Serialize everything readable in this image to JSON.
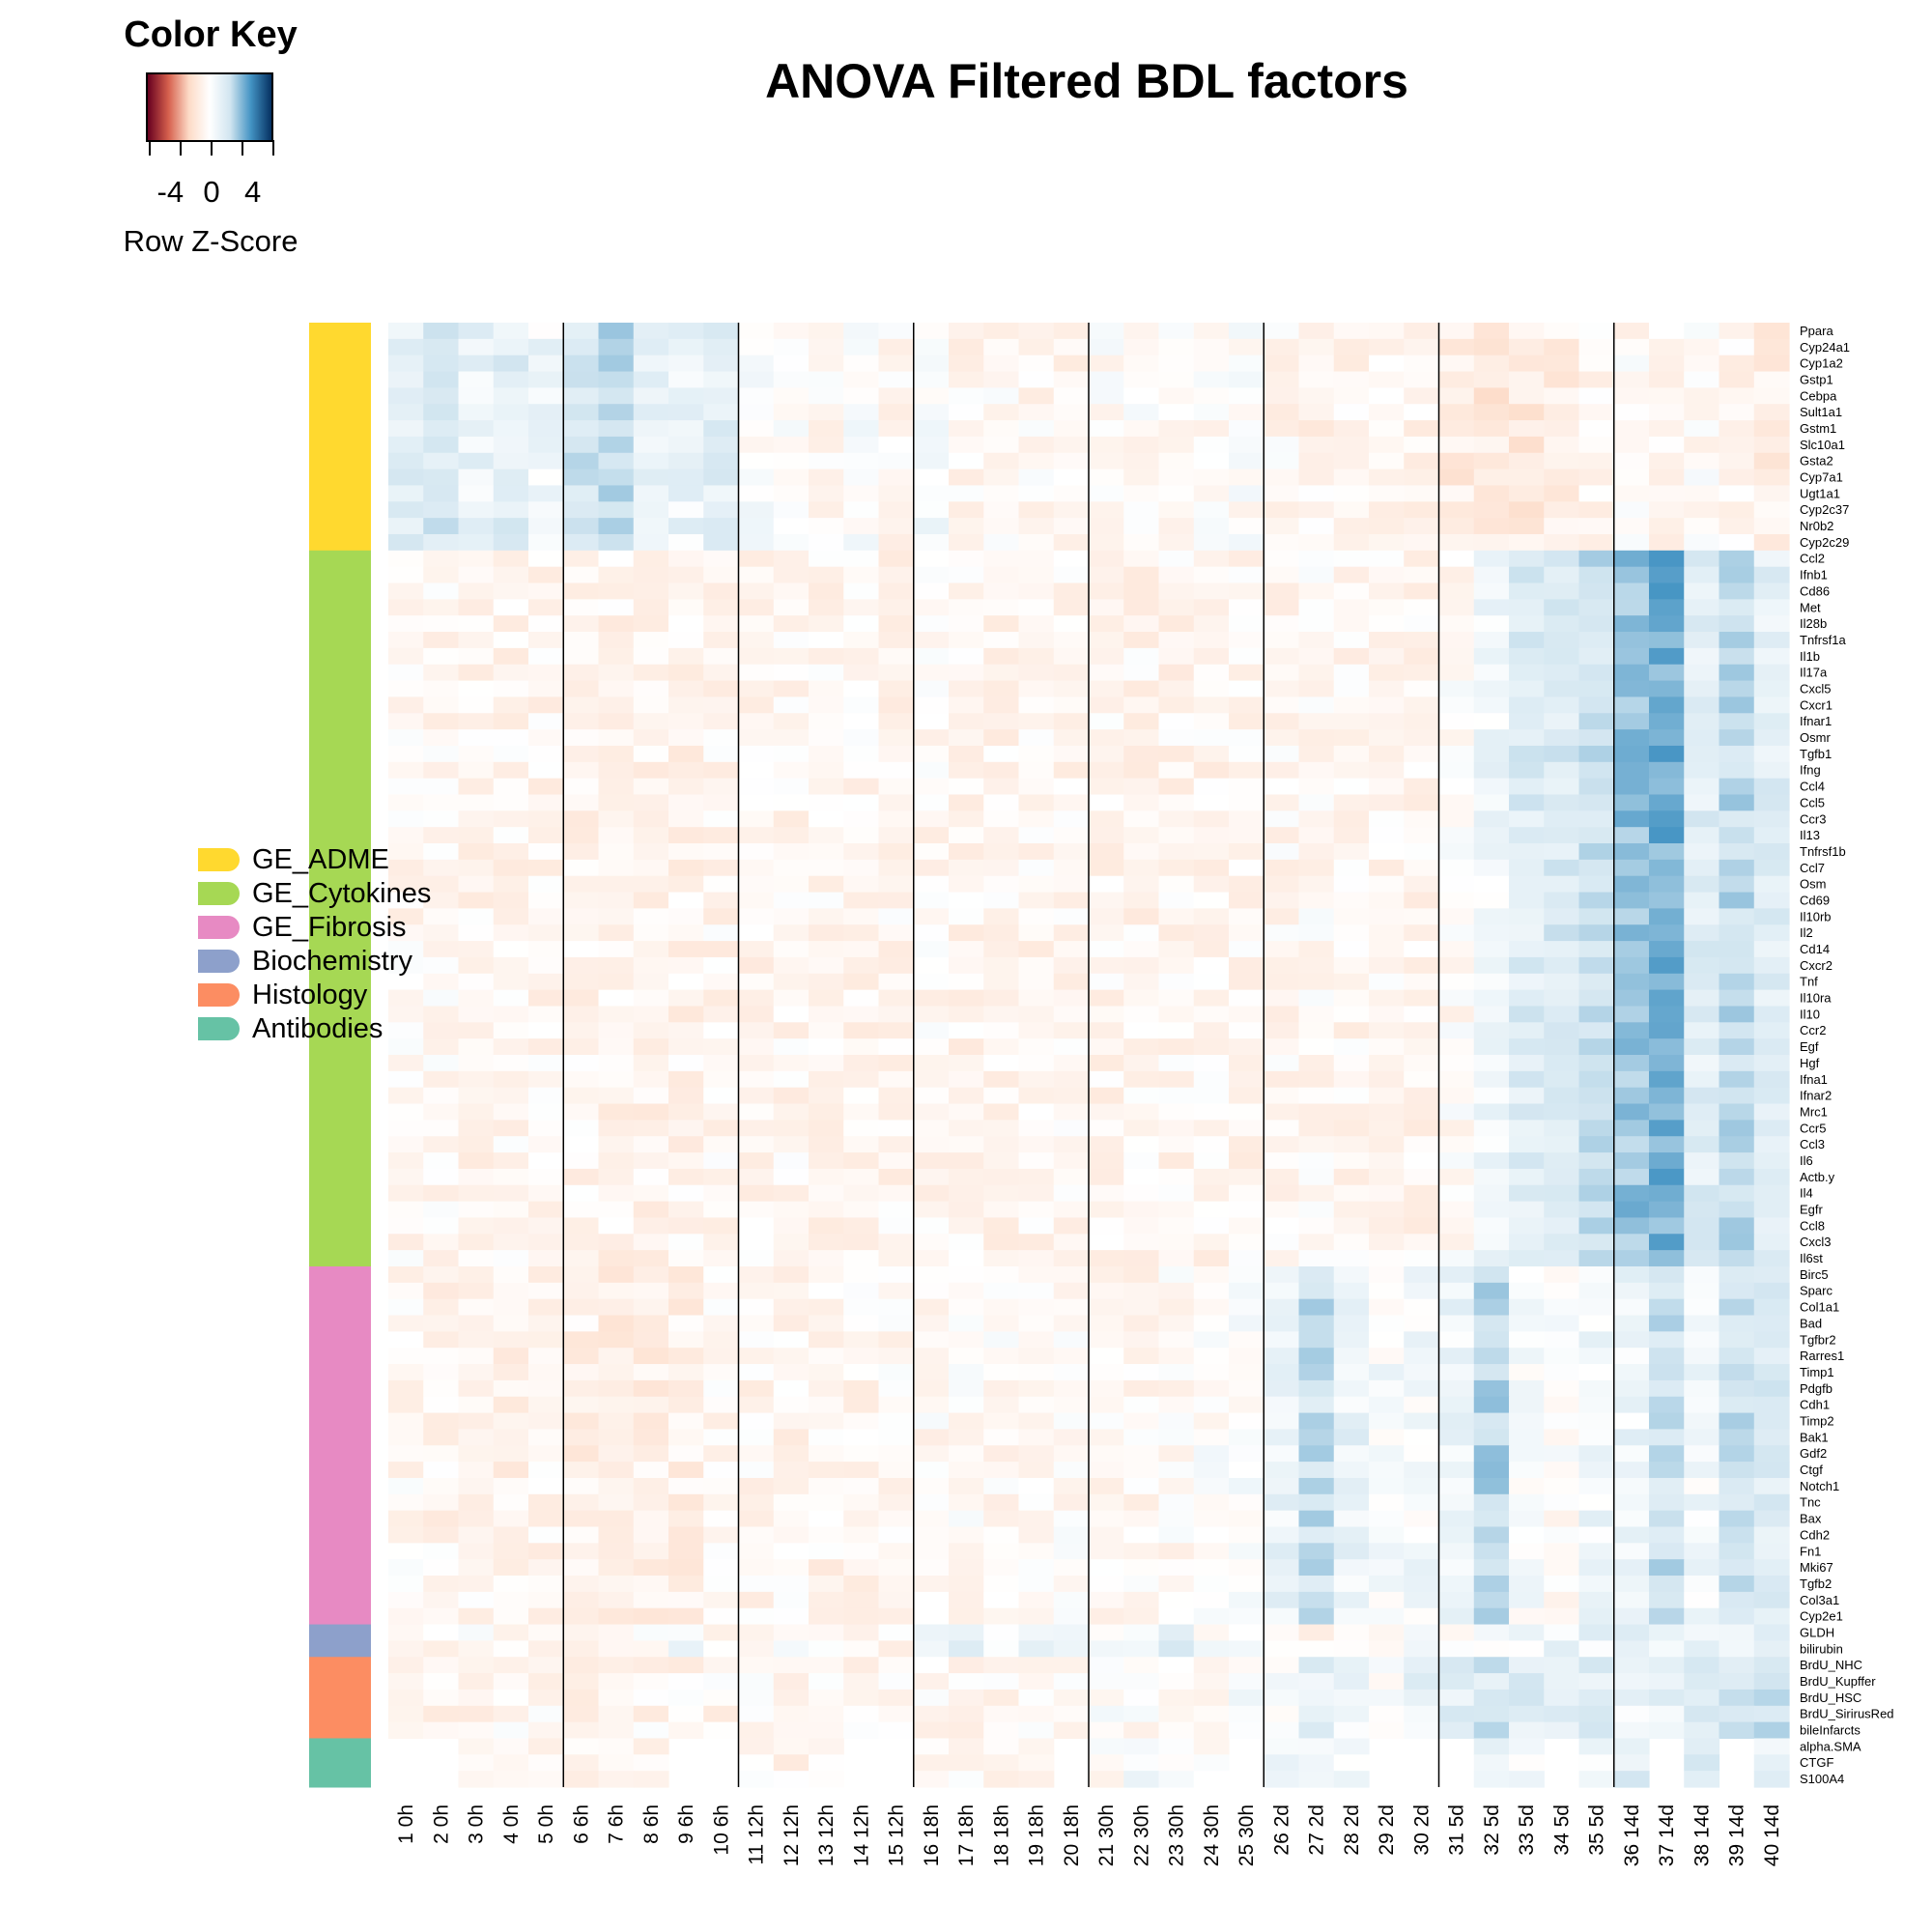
{
  "title": "ANOVA Filtered BDL factors",
  "color_key": {
    "title": "Color Key",
    "label": "Row Z-Score",
    "tick_labels": [
      "-4",
      "0",
      "4"
    ],
    "tick_values": [
      -4,
      0,
      4
    ],
    "range": [
      -6,
      6
    ],
    "colors": [
      "#67001f",
      "#d6604d",
      "#fddbc7",
      "#ffffff",
      "#d1e5f0",
      "#4393c3",
      "#053061"
    ]
  },
  "legend": [
    {
      "label": "GE_ADME",
      "color": "#ffd92f"
    },
    {
      "label": "GE_Cytokines",
      "color": "#a6d854"
    },
    {
      "label": "GE_Fibrosis",
      "color": "#e78ac3"
    },
    {
      "label": "Biochemistry",
      "color": "#8da0cb"
    },
    {
      "label": "Histology",
      "color": "#fc8d62"
    },
    {
      "label": "Antibodies",
      "color": "#66c2a5"
    }
  ],
  "chart_data": {
    "type": "heatmap",
    "title": "ANOVA Filtered BDL factors",
    "value_scale": "Row Z-Score",
    "columns": [
      "1 0h",
      "2 0h",
      "3 0h",
      "4 0h",
      "5 0h",
      "6 6h",
      "7 6h",
      "8 6h",
      "9 6h",
      "10 6h",
      "11 12h",
      "12 12h",
      "13 12h",
      "14 12h",
      "15 12h",
      "16 18h",
      "17 18h",
      "18 18h",
      "19 18h",
      "20 18h",
      "21 30h",
      "22 30h",
      "23 30h",
      "24 30h",
      "25 30h",
      "26 2d",
      "27 2d",
      "28 2d",
      "29 2d",
      "30 2d",
      "31 5d",
      "32 5d",
      "33 5d",
      "34 5d",
      "35 5d",
      "36 14d",
      "37 14d",
      "38 14d",
      "39 14d",
      "40 14d"
    ],
    "column_groups": [
      "0h",
      "6h",
      "12h",
      "18h",
      "30h",
      "2d",
      "5d",
      "14d"
    ],
    "rows": [
      "Ppara",
      "Cyp24a1",
      "Cyp1a2",
      "Gstp1",
      "Cebpa",
      "Sult1a1",
      "Gstm1",
      "Slc10a1",
      "Gsta2",
      "Cyp7a1",
      "Ugt1a1",
      "Cyp2c37",
      "Nr0b2",
      "Cyp2c29",
      "Ccl2",
      "Ifnb1",
      "Cd86",
      "Met",
      "Il28b",
      "Tnfrsf1a",
      "Il1b",
      "Il17a",
      "Cxcl5",
      "Cxcr1",
      "Ifnar1",
      "Osmr",
      "Tgfb1",
      "Ifng",
      "Ccl4",
      "Ccl5",
      "Ccr3",
      "Il13",
      "Tnfrsf1b",
      "Ccl7",
      "Osm",
      "Cd69",
      "Il10rb",
      "Il2",
      "Cd14",
      "Cxcr2",
      "Tnf",
      "Il10ra",
      "Il10",
      "Ccr2",
      "Egf",
      "Hgf",
      "Ifna1",
      "Ifnar2",
      "Mrc1",
      "Ccr5",
      "Ccl3",
      "Il6",
      "Actb.y",
      "Il4",
      "Egfr",
      "Ccl8",
      "Cxcl3",
      "Il6st",
      "Birc5",
      "Sparc",
      "Col1a1",
      "Bad",
      "Tgfbr2",
      "Rarres1",
      "Timp1",
      "Pdgfb",
      "Cdh1",
      "Timp2",
      "Bak1",
      "Gdf2",
      "Ctgf",
      "Notch1",
      "Tnc",
      "Bax",
      "Cdh2",
      "Fn1",
      "Mki67",
      "Tgfb2",
      "Col3a1",
      "Cyp2e1",
      "GLDH",
      "bilirubin",
      "BrdU_NHC",
      "BrdU_Kupffer",
      "BrdU_HSC",
      "BrdU_SirirusRed",
      "bileInfarcts",
      "alpha.SMA",
      "CTGF",
      "S100A4"
    ],
    "row_groups": [
      {
        "name": "GE_ADME",
        "start": 0,
        "count": 14
      },
      {
        "name": "GE_Cytokines",
        "start": 14,
        "count": 44
      },
      {
        "name": "GE_Fibrosis",
        "start": 58,
        "count": 22
      },
      {
        "name": "Biochemistry",
        "start": 80,
        "count": 2
      },
      {
        "name": "Histology",
        "start": 82,
        "count": 5
      },
      {
        "name": "Antibodies",
        "start": 87,
        "count": 3
      }
    ],
    "group_means": {
      "GE_ADME": [
        1.2,
        1.6,
        0.9,
        1.3,
        0.6,
        1.8,
        2.4,
        1.1,
        0.8,
        1.3,
        0.1,
        0.0,
        -0.3,
        0.1,
        -0.4,
        0.3,
        -0.5,
        -0.3,
        -0.4,
        -0.5,
        -0.1,
        -0.2,
        -0.3,
        -0.2,
        0.0,
        -0.4,
        -0.6,
        -0.5,
        -0.4,
        -0.5,
        -1.0,
        -1.2,
        -1.1,
        -0.8,
        -0.5,
        -0.3,
        -0.6,
        -0.2,
        -0.5,
        -0.9
      ],
      "GE_Cytokines": [
        -0.4,
        -0.4,
        -0.5,
        -0.5,
        -0.5,
        -0.6,
        -0.6,
        -0.6,
        -0.6,
        -0.5,
        -0.5,
        -0.5,
        -0.5,
        -0.5,
        -0.5,
        -0.4,
        -0.5,
        -0.5,
        -0.5,
        -0.5,
        -0.5,
        -0.5,
        -0.5,
        -0.5,
        -0.5,
        -0.4,
        -0.3,
        -0.5,
        -0.5,
        -0.5,
        -0.2,
        0.6,
        1.4,
        1.6,
        2.0,
        2.8,
        3.3,
        1.3,
        2.2,
        1.2
      ],
      "GE_Fibrosis": [
        -0.4,
        -0.5,
        -0.6,
        -0.7,
        -0.6,
        -0.7,
        -0.8,
        -0.8,
        -0.7,
        -0.5,
        -0.5,
        -0.5,
        -0.6,
        -0.5,
        -0.4,
        -0.3,
        -0.2,
        -0.3,
        -0.2,
        -0.3,
        -0.3,
        -0.4,
        -0.3,
        -0.1,
        0.1,
        0.8,
        2.0,
        0.9,
        0.3,
        0.4,
        0.7,
        2.4,
        0.3,
        -0.1,
        0.6,
        0.7,
        2.0,
        0.5,
        1.9,
        1.4
      ],
      "Biochemistry": [
        -0.3,
        -0.3,
        -0.3,
        -0.4,
        -0.3,
        -0.4,
        -0.4,
        -0.3,
        0.3,
        -0.3,
        -0.2,
        -0.2,
        -0.3,
        -0.3,
        -0.3,
        0.2,
        1.0,
        0.2,
        1.2,
        0.3,
        0.1,
        0.1,
        1.6,
        0.2,
        0.2,
        -0.4,
        -0.6,
        -0.3,
        -0.5,
        0.1,
        -0.2,
        0.2,
        0.3,
        0.7,
        0.8,
        1.2,
        0.3,
        0.9,
        0.5,
        0.8
      ],
      "Histology": [
        -0.5,
        -0.5,
        -0.5,
        -0.4,
        -0.4,
        -0.5,
        -0.5,
        -0.5,
        -0.5,
        -0.5,
        -0.4,
        -0.4,
        -0.4,
        -0.4,
        -0.4,
        -0.4,
        -0.4,
        -0.4,
        -0.4,
        -0.4,
        0.1,
        -0.2,
        -0.3,
        -0.2,
        0.2,
        0.4,
        1.1,
        0.8,
        0.2,
        0.9,
        1.2,
        1.7,
        1.4,
        1.0,
        1.3,
        0.8,
        1.1,
        1.3,
        1.6,
        1.9
      ],
      "Antibodies": [
        null,
        null,
        -0.6,
        -0.6,
        -0.6,
        -0.7,
        -0.7,
        -0.7,
        null,
        null,
        -0.5,
        -0.5,
        -0.5,
        null,
        null,
        -0.3,
        -0.3,
        -0.3,
        -0.3,
        null,
        -0.1,
        0.3,
        -0.1,
        -0.2,
        null,
        0.5,
        0.7,
        0.4,
        null,
        null,
        null,
        1.0,
        0.5,
        null,
        0.5,
        1.3,
        null,
        1.2,
        null,
        0.7
      ]
    },
    "legend_placement": "left"
  }
}
